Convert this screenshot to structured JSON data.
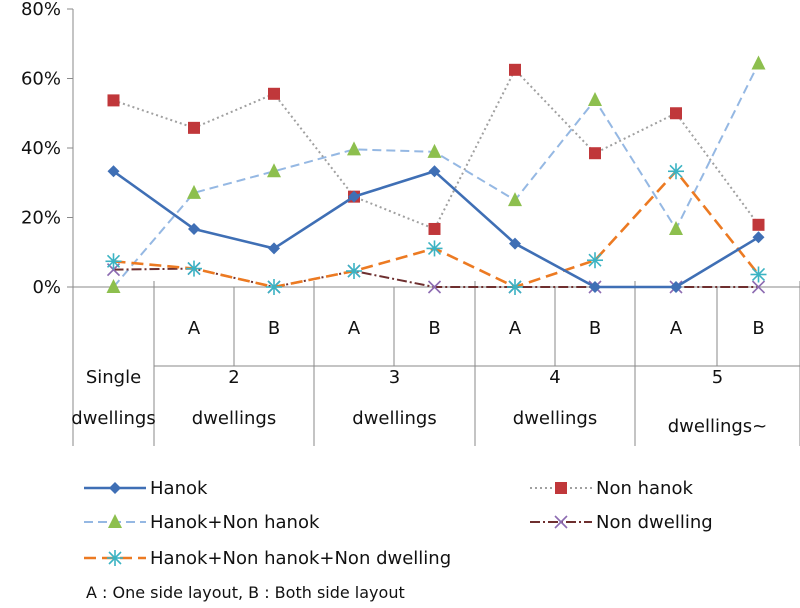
{
  "chart_data": {
    "type": "line",
    "y_ticks": [
      "0%",
      "20%",
      "40%",
      "60%",
      "80%"
    ],
    "ylim": [
      0,
      80
    ],
    "grid": false,
    "legend_position": "bottom",
    "groups": [
      {
        "line1": "Single",
        "line2": "dwellings",
        "subs": []
      },
      {
        "line1": "2",
        "line2": "dwellings",
        "subs": [
          "A",
          "B"
        ]
      },
      {
        "line1": "3",
        "line2": "dwellings",
        "subs": [
          "A",
          "B"
        ]
      },
      {
        "line1": "4",
        "line2": "dwellings",
        "subs": [
          "A",
          "B"
        ]
      },
      {
        "line1": "5",
        "line2": "dwellings~",
        "subs": [
          "A",
          "B"
        ]
      }
    ],
    "series": [
      {
        "name": "Hanok",
        "color": "#3F6FB5",
        "dash": "",
        "marker": "diamond",
        "values": [
          33.3,
          16.7,
          11.1,
          26.0,
          33.3,
          12.5,
          0,
          0,
          14.3
        ]
      },
      {
        "name": "Non hanok",
        "color": "#A0A0A0",
        "dash": "2,3",
        "marker": "square",
        "marker_color": "#C0373A",
        "values": [
          53.7,
          45.8,
          55.6,
          26.0,
          16.7,
          62.5,
          38.5,
          50.0,
          17.9
        ]
      },
      {
        "name": "Hanok+Non hanok",
        "color": "#95B8E3",
        "dash": "9,5",
        "marker": "triangle",
        "marker_color": "#8DBF4E",
        "values": [
          0,
          27.1,
          33.3,
          39.6,
          38.9,
          25.0,
          53.8,
          16.7,
          64.3
        ]
      },
      {
        "name": "Non dwelling",
        "color": "#6E2F2F",
        "dash": "10,3,2,3",
        "marker": "x",
        "marker_color": "#8C6BB1",
        "values": [
          5.0,
          5.3,
          0,
          4.6,
          0,
          0,
          0,
          0,
          0
        ]
      },
      {
        "name": "Hanok+Non hanok+Non dwelling",
        "color": "#EC7A22",
        "dash": "12,6",
        "marker": "star",
        "marker_color": "#3BB3C3",
        "values": [
          7.4,
          5.3,
          0,
          4.6,
          11.1,
          0,
          7.7,
          33.3,
          3.6
        ]
      }
    ],
    "footnote": "A : One  side  layout,   B : Both side layout"
  }
}
